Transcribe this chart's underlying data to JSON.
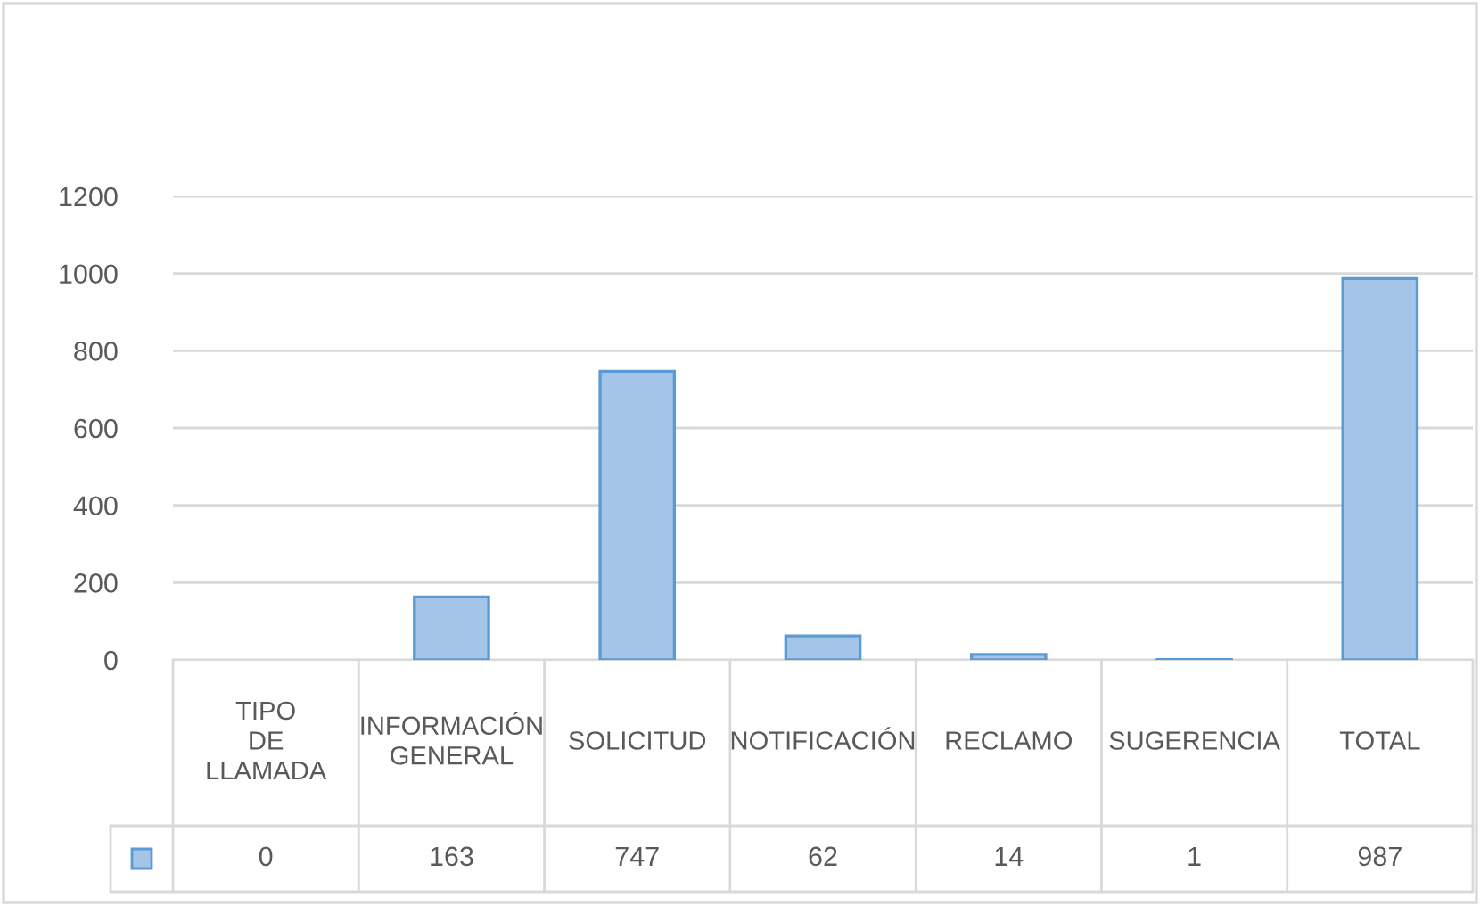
{
  "chart_data": {
    "type": "bar",
    "categories": [
      "TIPO DE LLAMADA",
      "INFORMACIÓN GENERAL",
      "SOLICITUD",
      "NOTIFICACIÓN",
      "RECLAMO",
      "SUGERENCIA",
      "TOTAL"
    ],
    "values": [
      0,
      163,
      747,
      62,
      14,
      1,
      987
    ],
    "color": "#a4c4e8",
    "ylim": [
      0,
      1200
    ],
    "yticks": [
      0,
      200,
      400,
      600,
      800,
      1000,
      1200
    ],
    "grid": "y",
    "data_labels": true
  }
}
